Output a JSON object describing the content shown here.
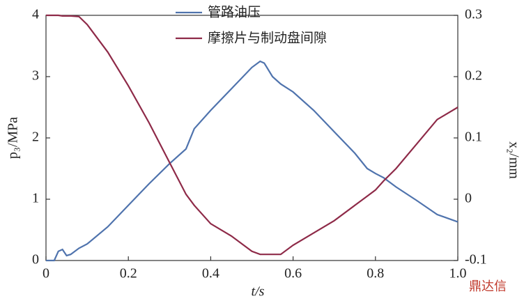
{
  "chart_data": {
    "type": "line",
    "xlabel": "t/s",
    "ylabel": "p₃/MPa",
    "y2label": "x₂/mm",
    "watermark": "鼎达信",
    "x": [
      0,
      0.02,
      0.03,
      0.04,
      0.05,
      0.06,
      0.08,
      0.1,
      0.15,
      0.2,
      0.25,
      0.3,
      0.34,
      0.36,
      0.4,
      0.45,
      0.5,
      0.52,
      0.53,
      0.55,
      0.57,
      0.6,
      0.65,
      0.7,
      0.75,
      0.78,
      0.8,
      0.82,
      0.85,
      0.9,
      0.95,
      1.0
    ],
    "series": [
      {
        "name": "管路油压",
        "color": "#4f73ad",
        "values": [
          0,
          0,
          0.15,
          0.18,
          0.08,
          0.1,
          0.2,
          0.27,
          0.55,
          0.9,
          1.25,
          1.58,
          1.82,
          2.15,
          2.45,
          2.8,
          3.15,
          3.25,
          3.22,
          3.0,
          2.88,
          2.75,
          2.45,
          2.1,
          1.75,
          1.5,
          1.42,
          1.35,
          1.2,
          0.98,
          0.75,
          0.63
        ]
      },
      {
        "name": "摩擦片与制动盘间隙",
        "color": "#8e2a48",
        "axis": "y2",
        "values": [
          0.3,
          0.3,
          0.3,
          0.299,
          0.299,
          0.299,
          0.298,
          0.285,
          0.24,
          0.185,
          0.125,
          0.06,
          0.008,
          -0.01,
          -0.04,
          -0.06,
          -0.085,
          -0.09,
          -0.09,
          -0.09,
          -0.09,
          -0.075,
          -0.055,
          -0.035,
          -0.01,
          0.005,
          0.015,
          0.03,
          0.05,
          0.09,
          0.13,
          0.15
        ]
      }
    ],
    "xlim": [
      0,
      1
    ],
    "xticks": [
      0,
      0.2,
      0.4,
      0.6,
      0.8,
      {
        "value": 1,
        "label": "1.0"
      }
    ],
    "ylim": [
      0,
      4
    ],
    "yticks": [
      0,
      1,
      2,
      3,
      4
    ],
    "y2lim": [
      -0.1,
      0.3
    ],
    "y2ticks": [
      -0.1,
      0,
      0.1,
      0.2,
      0.3
    ],
    "grid": false,
    "legend": "top"
  }
}
